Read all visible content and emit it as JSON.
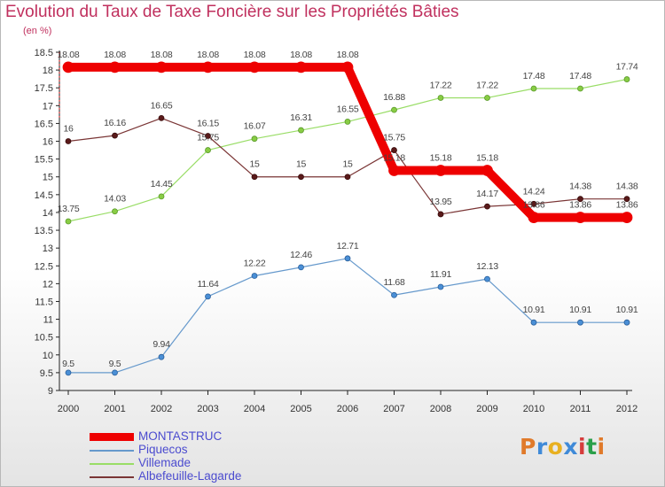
{
  "title": "Evolution du Taux de Taxe Foncière sur les Propriétés Bâties",
  "subtitle": "(en %)",
  "logo_text": "Proxiti",
  "logo_colors": [
    "#e07a2a",
    "#3f8ad8",
    "#e8b020",
    "#3f8ad8",
    "#d63c3c",
    "#2aa04a",
    "#e07a2a"
  ],
  "chart_data": {
    "type": "line",
    "title": "Evolution du Taux de Taxe Foncière sur les Propriétés Bâties",
    "ylabel": "(en %)",
    "xlabel": "",
    "x": [
      "2000",
      "2001",
      "2002",
      "2003",
      "2004",
      "2005",
      "2006",
      "2007",
      "2008",
      "2009",
      "2010",
      "2011",
      "2012"
    ],
    "ylim": [
      9,
      18.5
    ],
    "yticks": [
      "9",
      "9.5",
      "10",
      "10.5",
      "11",
      "11.5",
      "12",
      "12.5",
      "13",
      "13.5",
      "14",
      "14.5",
      "15",
      "15.5",
      "16",
      "16.5",
      "17",
      "17.5",
      "18",
      "18.5"
    ],
    "grid": false,
    "legend_position": "bottom-left",
    "series": [
      {
        "name": "MONTASTRUC",
        "color": "#ee0000",
        "values": [
          18.08,
          18.08,
          18.08,
          18.08,
          18.08,
          18.08,
          18.08,
          15.18,
          15.18,
          15.18,
          13.86,
          13.86,
          13.86
        ],
        "labels": [
          "18.08",
          "18.08",
          "18.08",
          "18.08",
          "18.08",
          "18.08",
          "18.08",
          "15.18",
          "15.18",
          "15.18",
          "13.86",
          "13.86",
          "13.86"
        ]
      },
      {
        "name": "Piquecos",
        "color": "#6699cc",
        "values": [
          9.5,
          9.5,
          9.94,
          11.64,
          12.22,
          12.46,
          12.71,
          11.68,
          11.91,
          12.13,
          10.91,
          10.91,
          10.91
        ],
        "labels": [
          "9.5",
          "9.5",
          "9.94",
          "11.64",
          "12.22",
          "12.46",
          "12.71",
          "11.68",
          "11.91",
          "12.13",
          "10.91",
          "10.91",
          "10.91"
        ]
      },
      {
        "name": "Villemade",
        "color": "#99dd66",
        "values": [
          13.75,
          14.03,
          14.45,
          15.75,
          16.07,
          16.31,
          16.55,
          16.88,
          17.22,
          17.22,
          17.48,
          17.48,
          17.74
        ],
        "labels": [
          "13.75",
          "14.03",
          "14.45",
          "15.75",
          "16.07",
          "16.31",
          "16.55",
          "16.88",
          "17.22",
          "17.22",
          "17.48",
          "17.48",
          "17.74"
        ]
      },
      {
        "name": "Albefeuille-Lagarde",
        "color": "#7a3535",
        "values": [
          16,
          16.16,
          16.65,
          16.15,
          15,
          15,
          15,
          15.75,
          13.95,
          14.17,
          14.24,
          14.38,
          14.38
        ],
        "labels": [
          "16",
          "16.16",
          "16.65",
          "16.15",
          "15",
          "15",
          "15",
          "15.75",
          "13.95",
          "14.17",
          "14.24",
          "14.38",
          "14.38"
        ]
      }
    ]
  }
}
